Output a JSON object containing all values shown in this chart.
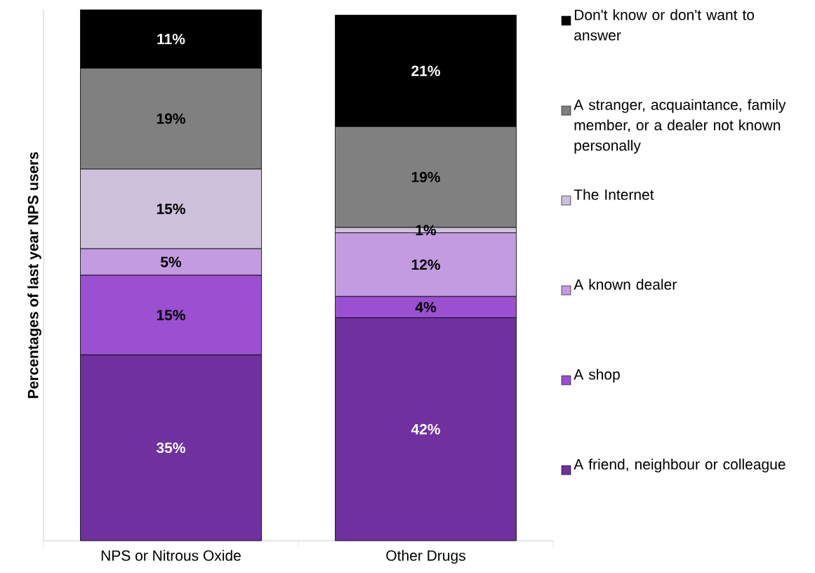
{
  "chart_data": {
    "type": "bar",
    "stacked": true,
    "ylabel": "Percentages of last year NPS users",
    "categories": [
      "NPS or Nitrous Oxide",
      "Other Drugs"
    ],
    "ylim": [
      0,
      100
    ],
    "legend": "right",
    "series": [
      {
        "name": "A friend, neighbour or colleague",
        "color": "#7030a0",
        "values": [
          35,
          42
        ],
        "value_labels": [
          "35%",
          "42%"
        ]
      },
      {
        "name": "A shop",
        "color": "#9a50d0",
        "values": [
          15,
          4
        ],
        "value_labels": [
          "15%",
          "4%"
        ]
      },
      {
        "name": "A known dealer",
        "color": "#c39be0",
        "values": [
          5,
          12
        ],
        "value_labels": [
          "5%",
          "12%"
        ]
      },
      {
        "name": "The Internet",
        "color": "#ccc0da",
        "values": [
          15,
          1
        ],
        "value_labels": [
          "15%",
          "1%"
        ]
      },
      {
        "name": "A stranger, acquaintance, family member, or a dealer not known personally",
        "color": "#808080",
        "values": [
          19,
          19
        ],
        "value_labels": [
          "19%",
          "19%"
        ]
      },
      {
        "name": "Don't know or don't want to answer",
        "color": "#000000",
        "values": [
          11,
          21
        ],
        "value_labels": [
          "11%",
          "21%"
        ]
      }
    ]
  }
}
